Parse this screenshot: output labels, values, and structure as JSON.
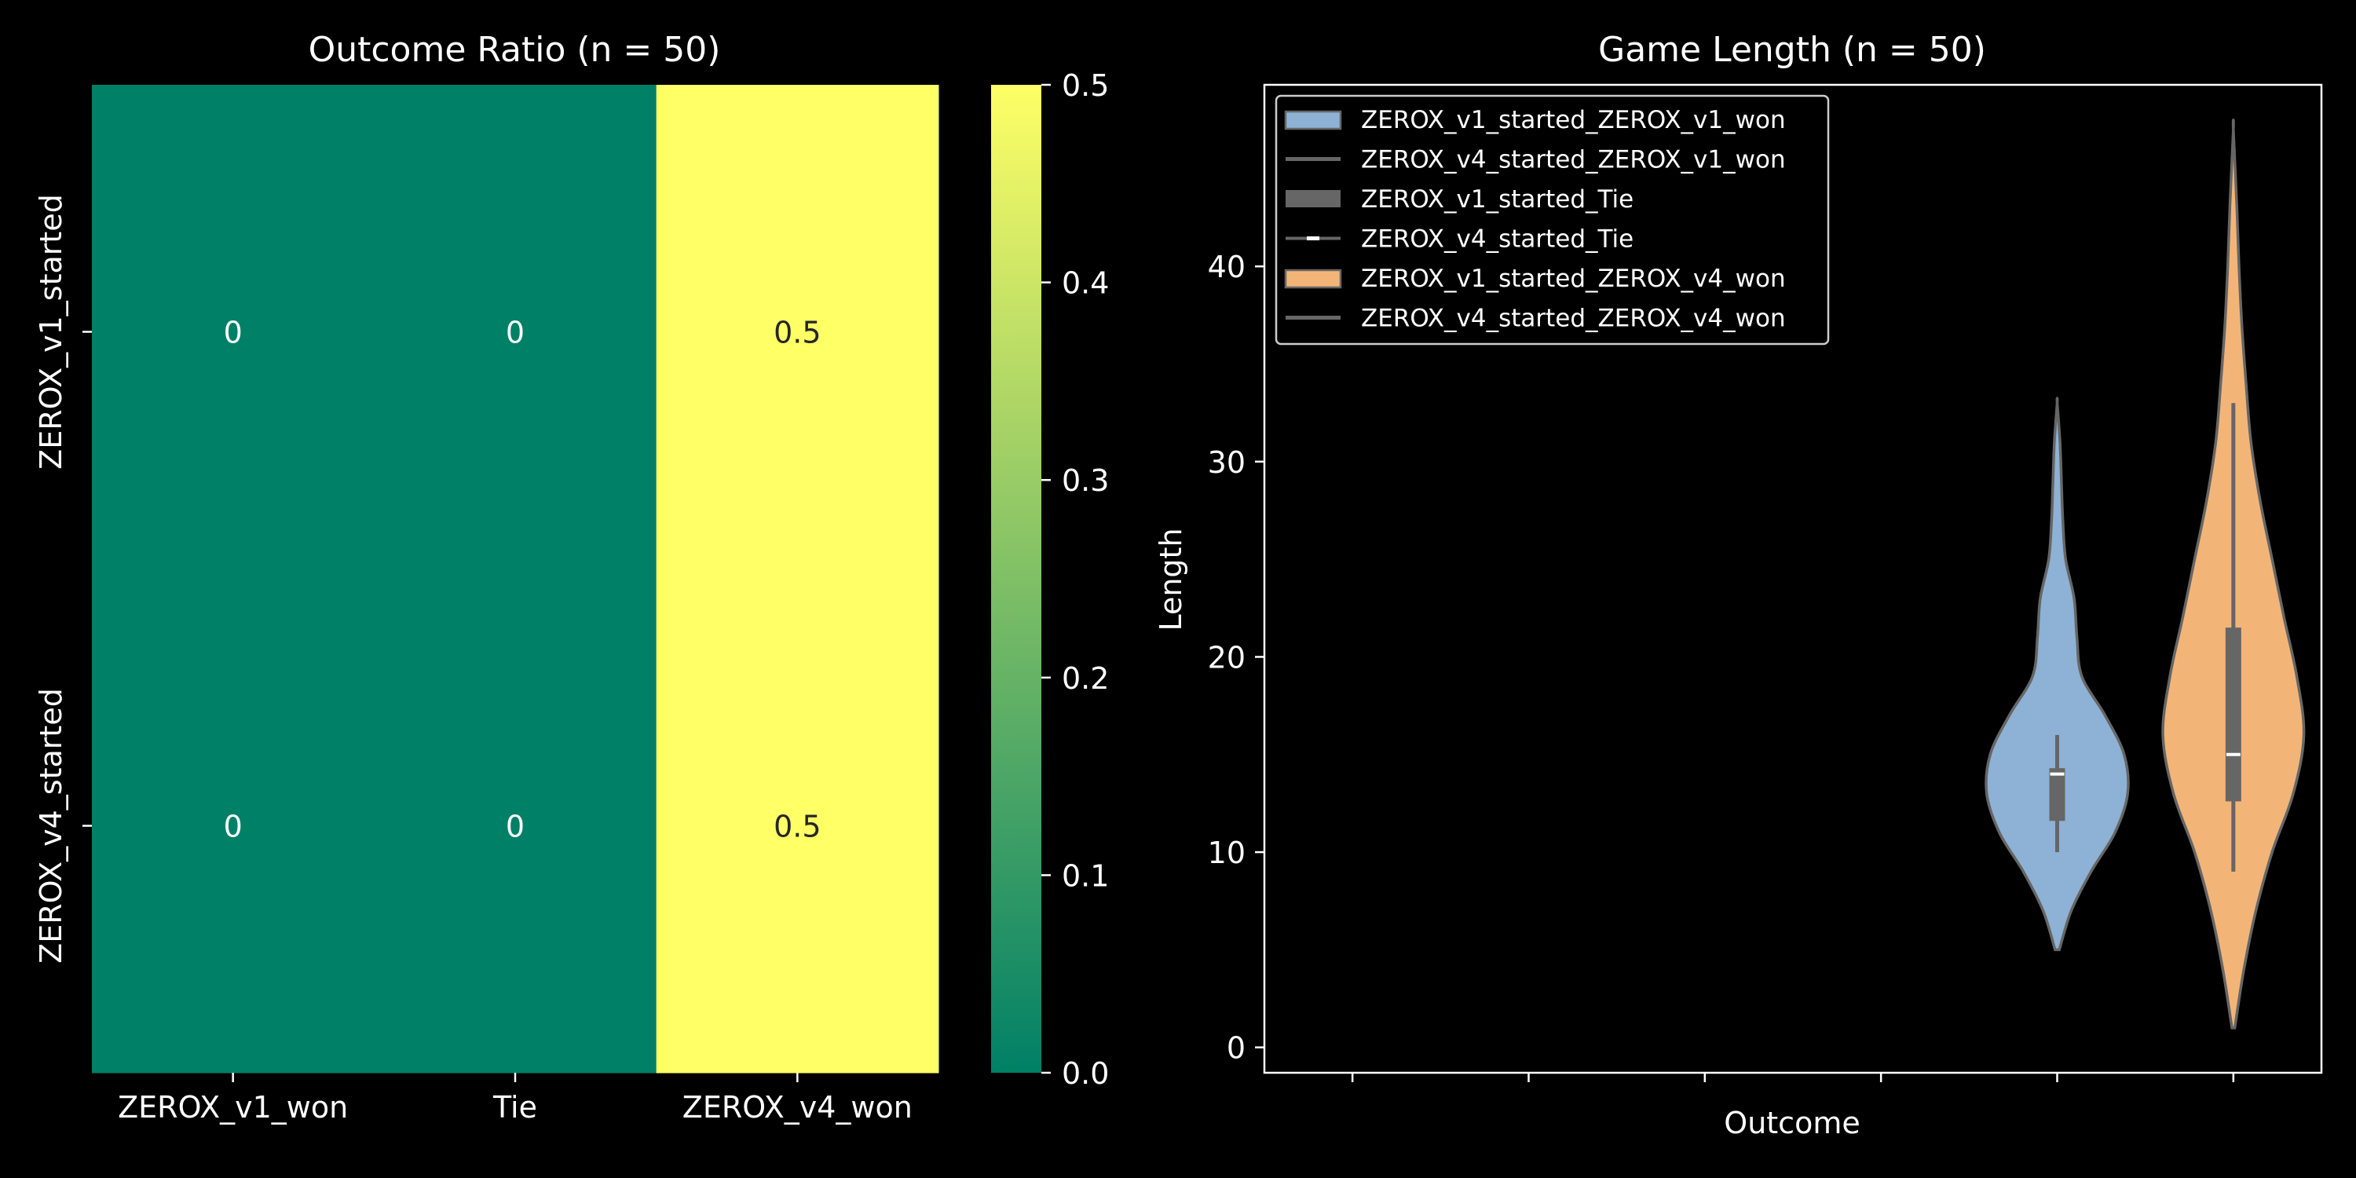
{
  "chart_data": [
    {
      "type": "heatmap",
      "title": "Outcome Ratio (n = 50)",
      "rows": [
        "ZEROX_v1_started",
        "ZEROX_v4_started"
      ],
      "columns": [
        "ZEROX_v1_won",
        "Tie",
        "ZEROX_v4_won"
      ],
      "values": [
        [
          0,
          0,
          0.5
        ],
        [
          0,
          0,
          0.5
        ]
      ],
      "cell_labels": [
        [
          "0",
          "0",
          "0.5"
        ],
        [
          "0",
          "0",
          "0.5"
        ]
      ],
      "colormap": "summer",
      "colorbar": {
        "range": [
          0,
          0.5
        ],
        "ticks": [
          "0.0",
          "0.1",
          "0.2",
          "0.3",
          "0.4",
          "0.5"
        ]
      },
      "colors": {
        "low": "#008066",
        "high": "#ffff66"
      }
    },
    {
      "type": "violin",
      "title": "Game Length (n = 50)",
      "xlabel": "Outcome",
      "ylabel": "Length",
      "ylim": [
        -1.3,
        49.3
      ],
      "yticks": [
        0,
        10,
        20,
        30,
        40
      ],
      "x_positions": 6,
      "legend": {
        "position": "top-left",
        "entries": [
          "ZEROX_v1_started_ZEROX_v1_won",
          "ZEROX_v4_started_ZEROX_v1_won",
          "ZEROX_v1_started_Tie",
          "ZEROX_v4_started_Tie",
          "ZEROX_v1_started_ZEROX_v4_won",
          "ZEROX_v4_started_ZEROX_v4_won"
        ]
      },
      "series": [
        {
          "slot": 5,
          "color": "#8db2d5",
          "median": 14,
          "q1": 11.6,
          "q3": 14.3,
          "whisker_low": 10,
          "whisker_high": 16,
          "range": [
            5,
            33
          ],
          "profile": [
            [
              5,
              0.03
            ],
            [
              7,
              0.2
            ],
            [
              9,
              0.48
            ],
            [
              11,
              0.82
            ],
            [
              13,
              1.0
            ],
            [
              15,
              0.95
            ],
            [
              17,
              0.68
            ],
            [
              19,
              0.35
            ],
            [
              21,
              0.28
            ],
            [
              23,
              0.24
            ],
            [
              25,
              0.12
            ],
            [
              27,
              0.08
            ],
            [
              29,
              0.06
            ],
            [
              31,
              0.04
            ],
            [
              33,
              0.0
            ]
          ]
        },
        {
          "slot": 6,
          "color": "#f3b577",
          "median": 15,
          "q1": 12.6,
          "q3": 21.5,
          "whisker_low": 9,
          "whisker_high": 33,
          "range": [
            1,
            47
          ],
          "profile": [
            [
              1,
              0.02
            ],
            [
              4,
              0.15
            ],
            [
              7,
              0.32
            ],
            [
              10,
              0.55
            ],
            [
              13,
              0.85
            ],
            [
              16,
              1.0
            ],
            [
              19,
              0.9
            ],
            [
              22,
              0.72
            ],
            [
              25,
              0.55
            ],
            [
              28,
              0.38
            ],
            [
              31,
              0.25
            ],
            [
              34,
              0.18
            ],
            [
              37,
              0.12
            ],
            [
              40,
              0.08
            ],
            [
              43,
              0.05
            ],
            [
              47,
              0.0
            ]
          ]
        }
      ]
    }
  ]
}
